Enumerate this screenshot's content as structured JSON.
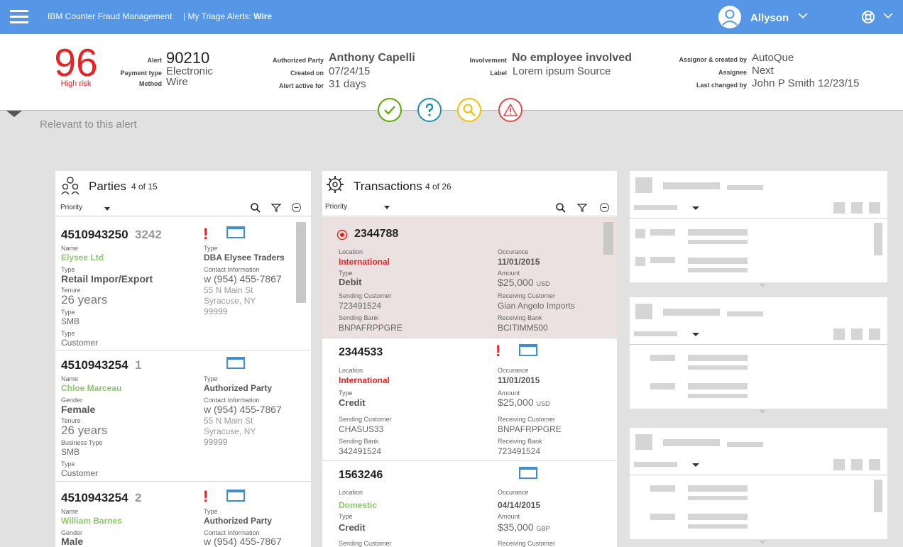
{
  "app": {
    "brand": "IBM Counter Fraud Management",
    "crumb_prefix": "|  My Triage Alerts:",
    "crumb_current": "Wire",
    "user": "Allyson"
  },
  "alert": {
    "score": "96",
    "risk": "High risk",
    "alert_label": "Alert",
    "alert_id": "90210",
    "payment_type_label": "Payment type",
    "payment_type": "Electronic",
    "method_label": "Method",
    "method": "Wire",
    "authorized_party_label": "Authorized Party",
    "authorized_party": "Anthony Capelli",
    "created_on_label": "Created on",
    "created_on": "07/24/15",
    "active_for_label": "Alert active for",
    "active_for": "31 days",
    "involvement_label": "Involvement",
    "involvement": "No employee involved",
    "label_label": "Label",
    "label": "Lorem ipsum Source",
    "assignor_label": "Assignor & created by",
    "assignor": "AutoQue",
    "assignee_label": "Assignee",
    "assignee": "Next",
    "last_changed_label": "Last changed by",
    "last_changed": "John P Smith 12/23/15"
  },
  "section_title": "Relevant to this alert",
  "parties": {
    "title": "Parties",
    "count": "4 of 15",
    "sort": "Priority",
    "items": [
      {
        "id": "4510943250",
        "rank": "3242",
        "name_label": "Name",
        "name": "Elysee Ltd",
        "type_label": "Type",
        "type": "Retail Impor/Export",
        "tenure_label": "Tenure",
        "tenure": "26 years",
        "type2_label": "Type",
        "type2": "SMB",
        "type3_label": "Type",
        "type3": "Customer",
        "rtype_label": "Type",
        "rtype": "DBA Elysee Traders",
        "contact_label": "Contact Information",
        "phone": "w (954) 455-7867",
        "addr1": "55 N Main St",
        "addr2": "Syracuse, NY",
        "zip": "99999"
      },
      {
        "id": "4510943254",
        "rank": "1",
        "name_label": "Name",
        "name": "Chloe Marceau",
        "type_label": "Gender",
        "type": "Female",
        "tenure_label": "Tenure",
        "tenure": "26 years",
        "type2_label": "Business Type",
        "type2": "SMB",
        "type3_label": "Type",
        "type3": "Customer",
        "rtype_label": "Type",
        "rtype": "Authorized Party",
        "contact_label": "Contact Information",
        "phone": "w (954) 455-7867",
        "addr1": "55 N Main St",
        "addr2": "Syracuse, NY",
        "zip": "99999"
      },
      {
        "id": "4510943254",
        "rank": "2",
        "name_label": "Name",
        "name": "William Barnes",
        "type_label": "Gender",
        "type": "Male",
        "rtype_label": "Type",
        "rtype": "Authorized Party",
        "contact_label": "Contact Information",
        "phone": "w (954) 455-7867"
      }
    ]
  },
  "transactions": {
    "title": "Transactions",
    "count": "4 of 26",
    "sort": "Priority",
    "items": [
      {
        "id": "2344788",
        "loc_label": "Location",
        "loc": "International",
        "type_label": "Type",
        "type": "Debit",
        "sc_label": "Sending Customer",
        "sc": "723491524",
        "sb_label": "Sending Bank",
        "sb": "BNPAFRPPGRE",
        "occ_label": "Occurance",
        "occ": "11/01/2015",
        "amt_label": "Amount",
        "amt": "$25,000",
        "cur": "USD",
        "rc_label": "Receiving Customer",
        "rc": "Gian Angelo Imports",
        "rb_label": "Receiving Bank",
        "rb": "BCITIMM500"
      },
      {
        "id": "2344533",
        "loc_label": "Location",
        "loc": "International",
        "type_label": "Type",
        "type": "Credit",
        "sc_label": "Sending Customer",
        "sc": "CHASUS33",
        "sb_label": "Sending Bank",
        "sb": "342491524",
        "occ_label": "Occurance",
        "occ": "11/01/2015",
        "amt_label": "Amount",
        "amt": "$25,000",
        "cur": "USD",
        "rc_label": "Receiving Customer",
        "rc": "BNPAFRPPGRE",
        "rb_label": "Receiving Bank",
        "rb": "723491524"
      },
      {
        "id": "1563246",
        "loc_label": "Location",
        "loc": "Domestic",
        "type_label": "Type",
        "type": "Credit",
        "sc_label": "Sending Customer",
        "occ_label": "Occurance",
        "occ": "04/14/2015",
        "amt_label": "Amount",
        "amt": "$35,000",
        "cur": "GBP",
        "rc_label": "Receiving Customer"
      }
    ]
  },
  "colors": {
    "brand": "#5596e6",
    "risk": "#e62325",
    "green": "#8cc76e",
    "approve": "#5aa700",
    "question": "#1992a8",
    "investigate": "#efc100",
    "escalate": "#e7484a"
  },
  "icons": [
    "menu-icon",
    "user-avatar-icon",
    "chevron-down-icon",
    "lifebuoy-icon",
    "checkmark-icon",
    "question-icon",
    "search-icon",
    "warning-icon",
    "parties-icon",
    "gear-icon",
    "filter-icon",
    "collapse-icon",
    "exclamation-icon",
    "folder-icon",
    "radio-selected-icon"
  ]
}
